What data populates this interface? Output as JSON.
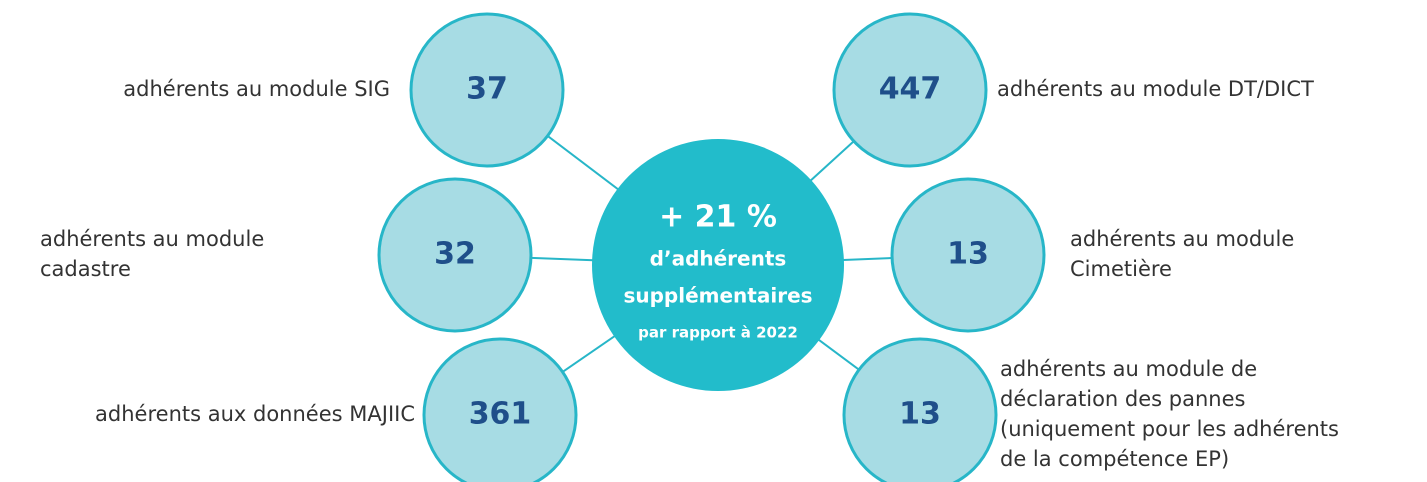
{
  "center": {
    "headline": "+ 21 %",
    "line1": "d’adhérents",
    "line2": "supplémentaires",
    "line3": "par rapport à 2022"
  },
  "nodes": [
    {
      "value": 37,
      "label": [
        "adhérents au module SIG"
      ]
    },
    {
      "value": 447,
      "label": [
        "adhérents au module DT/DICT"
      ]
    },
    {
      "value": 32,
      "label": [
        "adhérents au module",
        "cadastre"
      ]
    },
    {
      "value": 13,
      "label": [
        "adhérents au module",
        "Cimetière"
      ]
    },
    {
      "value": 361,
      "label": [
        "adhérents aux données MAJIIC"
      ]
    },
    {
      "value": 13,
      "label": [
        "adhérents au module de",
        "déclaration des pannes",
        "(uniquement pour les adhérents",
        "de la compétence EP)"
      ]
    }
  ]
}
